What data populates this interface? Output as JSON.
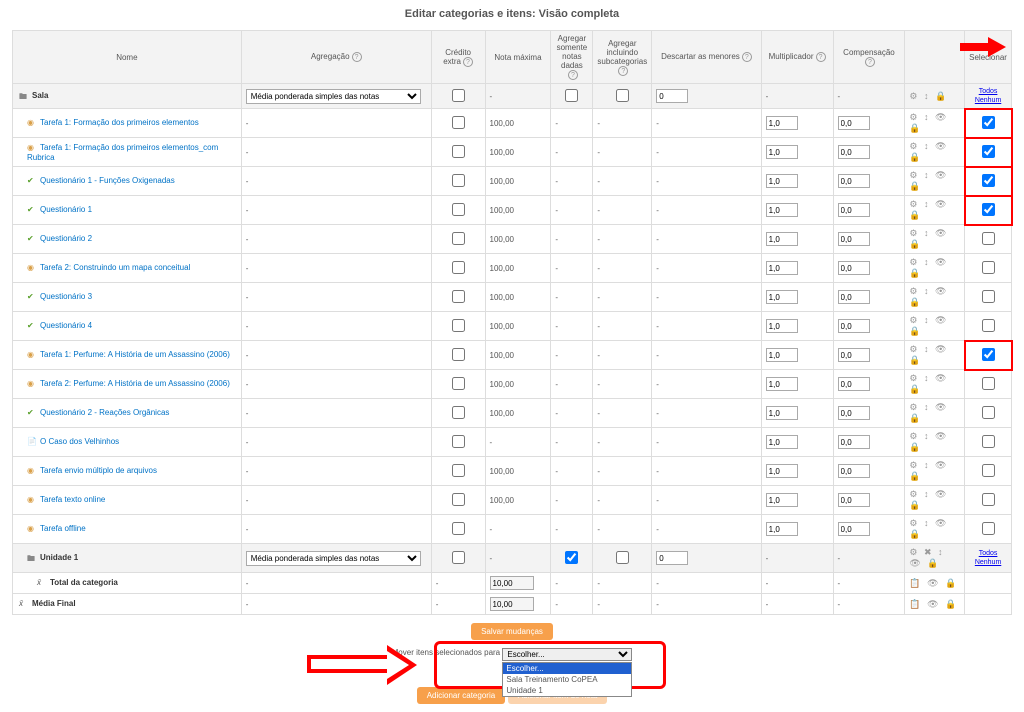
{
  "title": "Editar categorias e itens: Visão completa",
  "headers": {
    "nome": "Nome",
    "agregacao": "Agregação",
    "credito": "Crédito extra",
    "nota_max": "Nota máxima",
    "agg_somente": "Agregar somente notas dadas",
    "agg_incl": "Agregar incluindo subcategorias",
    "discard": "Descartar as menores",
    "mult": "Multiplicador",
    "comp": "Compensação",
    "actions": "",
    "select": "Selecionar"
  },
  "agg_option": "Média ponderada simples das notas",
  "sel_links": {
    "todos": "Todos",
    "nenhum": "Nenhum"
  },
  "rows": [
    {
      "type": "category",
      "name": "Sala",
      "indent": 0,
      "icon": "folder",
      "agg_select": true,
      "max": "-",
      "agg1": "check",
      "agg2": "check",
      "disc": "0",
      "mult": "-",
      "comp": "-",
      "actions": "⚙ ↕ 🔒",
      "sel": "links",
      "sel_hl": false
    },
    {
      "type": "item",
      "name": "Tarefa 1: Formação dos primeiros elementos",
      "indent": 1,
      "icon": "task",
      "max": "100,00",
      "mult": "1,0",
      "comp": "0,0",
      "actions": "⚙ ↕ 👁 🔒",
      "sel": "check",
      "checked": true,
      "sel_hl": true
    },
    {
      "type": "item",
      "name": "Tarefa 1: Formação dos primeiros elementos_com Rubrica",
      "indent": 1,
      "icon": "task",
      "max": "100,00",
      "mult": "1,0",
      "comp": "0,0",
      "actions": "⚙ ↕ 👁 🔒",
      "sel": "check",
      "checked": true,
      "sel_hl": true
    },
    {
      "type": "item",
      "name": "Questionário 1 - Funções Oxigenadas",
      "indent": 1,
      "icon": "quiz",
      "max": "100,00",
      "mult": "1,0",
      "comp": "0,0",
      "actions": "⚙ ↕ 👁 🔒",
      "sel": "check",
      "checked": true,
      "sel_hl": true
    },
    {
      "type": "item",
      "name": "Questionário 1",
      "indent": 1,
      "icon": "quiz",
      "max": "100,00",
      "mult": "1,0",
      "comp": "0,0",
      "actions": "⚙ ↕ 👁 🔒",
      "sel": "check",
      "checked": true,
      "sel_hl": true
    },
    {
      "type": "item",
      "name": "Questionário 2",
      "indent": 1,
      "icon": "quiz",
      "max": "100,00",
      "mult": "1,0",
      "comp": "0,0",
      "actions": "⚙ ↕ 👁 🔒",
      "sel": "check",
      "checked": false,
      "sel_hl": false
    },
    {
      "type": "item",
      "name": "Tarefa 2: Construindo um mapa conceitual",
      "indent": 1,
      "icon": "task",
      "max": "100,00",
      "mult": "1,0",
      "comp": "0,0",
      "actions": "⚙ ↕ 👁 🔒",
      "sel": "check",
      "checked": false,
      "sel_hl": false
    },
    {
      "type": "item",
      "name": "Questionário 3",
      "indent": 1,
      "icon": "quiz",
      "max": "100,00",
      "mult": "1,0",
      "comp": "0,0",
      "actions": "⚙ ↕ 👁 🔒",
      "sel": "check",
      "checked": false,
      "sel_hl": false
    },
    {
      "type": "item",
      "name": "Questionário 4",
      "indent": 1,
      "icon": "quiz",
      "max": "100,00",
      "mult": "1,0",
      "comp": "0,0",
      "actions": "⚙ ↕ 👁 🔒",
      "sel": "check",
      "checked": false,
      "sel_hl": false
    },
    {
      "type": "item",
      "name": "Tarefa 1: Perfume: A História de um Assassino (2006)",
      "indent": 1,
      "icon": "task",
      "max": "100,00",
      "mult": "1,0",
      "comp": "0,0",
      "actions": "⚙ ↕ 👁 🔒",
      "sel": "check",
      "checked": true,
      "sel_hl": true
    },
    {
      "type": "item",
      "name": "Tarefa 2: Perfume: A História de um Assassino (2006)",
      "indent": 1,
      "icon": "task",
      "max": "100,00",
      "mult": "1,0",
      "comp": "0,0",
      "actions": "⚙ ↕ 👁 🔒",
      "sel": "check",
      "checked": false,
      "sel_hl": false
    },
    {
      "type": "item",
      "name": "Questionário 2 - Reações Orgânicas",
      "indent": 1,
      "icon": "quiz",
      "max": "100,00",
      "mult": "1,0",
      "comp": "0,0",
      "actions": "⚙ ↕ 👁 🔒",
      "sel": "check",
      "checked": false,
      "sel_hl": false
    },
    {
      "type": "item",
      "name": "O Caso dos Velhinhos",
      "indent": 1,
      "icon": "lesson",
      "max": "-",
      "mult": "1,0",
      "comp": "0,0",
      "actions": "⚙ ↕ 👁 🔒",
      "sel": "check",
      "checked": false,
      "sel_hl": false
    },
    {
      "type": "item",
      "name": "Tarefa envio múltiplo de arquivos",
      "indent": 1,
      "icon": "task",
      "max": "100,00",
      "mult": "1,0",
      "comp": "0,0",
      "actions": "⚙ ↕ 👁 🔒",
      "sel": "check",
      "checked": false,
      "sel_hl": false
    },
    {
      "type": "item",
      "name": "Tarefa texto online",
      "indent": 1,
      "icon": "task",
      "max": "100,00",
      "mult": "1,0",
      "comp": "0,0",
      "actions": "⚙ ↕ 👁 🔒",
      "sel": "check",
      "checked": false,
      "sel_hl": false
    },
    {
      "type": "item",
      "name": "Tarefa offline",
      "indent": 1,
      "icon": "task",
      "max": "-",
      "mult": "1,0",
      "comp": "0,0",
      "actions": "⚙ ↕ 👁 🔒",
      "sel": "check",
      "checked": false,
      "sel_hl": false
    },
    {
      "type": "category",
      "name": "Unidade 1",
      "indent": 1,
      "icon": "folder",
      "agg_select": true,
      "max": "-",
      "agg1": "checked",
      "agg2": "check",
      "disc": "0",
      "mult": "-",
      "comp": "-",
      "actions": "⚙ ✖ ↕ 👁 🔒",
      "sel": "links",
      "sel_hl": false
    },
    {
      "type": "total",
      "name": "Total da categoria",
      "indent": 2,
      "icon": "calc",
      "max_input": "10,00",
      "actions": "📋 👁 🔒",
      "sel": "none"
    },
    {
      "type": "total",
      "name": "Média Final",
      "indent": 0,
      "icon": "calc",
      "max_input": "10,00",
      "actions": "📋 👁 🔒",
      "sel": "none"
    }
  ],
  "buttons": {
    "save": "Salvar mudanças",
    "move_label": "Mover itens selecionados para",
    "move_placeholder": "Escolher...",
    "options": [
      "Escolher...",
      "Sala Treinamento CoPEA",
      "Unidade 1"
    ],
    "add_category": "Adicionar categoria",
    "add_item": "Adicionar item de nota"
  }
}
